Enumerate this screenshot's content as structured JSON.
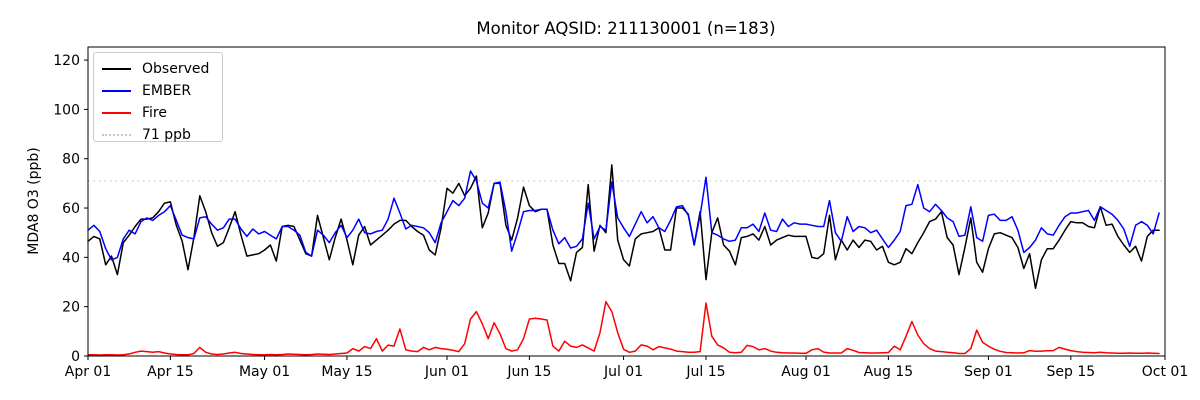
{
  "chart_data": {
    "type": "line",
    "title": "Monitor AQSID: 211130001 (n=183)",
    "xlabel": "",
    "ylabel": "MDA8 O3 (ppb)",
    "n": 183,
    "x_unit": "day index from Apr 01",
    "x_range": [
      "Apr 01",
      "Oct 01"
    ],
    "ylim": [
      0,
      125.3
    ],
    "grid": false,
    "y_ticks": [
      0,
      20,
      40,
      60,
      80,
      100,
      120
    ],
    "x_ticks": [
      {
        "label": "Apr 01",
        "day": 0
      },
      {
        "label": "Apr 15",
        "day": 14
      },
      {
        "label": "May 01",
        "day": 30
      },
      {
        "label": "May 15",
        "day": 44
      },
      {
        "label": "Jun 01",
        "day": 61
      },
      {
        "label": "Jun 15",
        "day": 75
      },
      {
        "label": "Jul 01",
        "day": 91
      },
      {
        "label": "Jul 15",
        "day": 105
      },
      {
        "label": "Aug 01",
        "day": 122
      },
      {
        "label": "Aug 15",
        "day": 136
      },
      {
        "label": "Sep 01",
        "day": 153
      },
      {
        "label": "Sep 15",
        "day": 167
      },
      {
        "label": "Oct 01",
        "day": 183
      }
    ],
    "threshold": {
      "label": "71 ppb",
      "value": 71,
      "color": "#c8c8c8",
      "style": "dotted"
    },
    "legend": {
      "position": "upper left",
      "entries": [
        "Observed",
        "EMBER",
        "Fire",
        "71 ppb"
      ]
    },
    "legend_items": [
      {
        "label": "Observed",
        "color": "#000000",
        "style": "solid"
      },
      {
        "label": "EMBER",
        "color": "#0000ff",
        "style": "solid"
      },
      {
        "label": "Fire",
        "color": "#ff0000",
        "style": "solid"
      },
      {
        "label": "71 ppb",
        "color": "#c8c8c8",
        "style": "dotted"
      }
    ],
    "series": [
      {
        "name": "Observed",
        "color": "#000000",
        "values": [
          46.5,
          48.5,
          47.5,
          37,
          40.5,
          33,
          46,
          49,
          52.5,
          55.5,
          55.5,
          56,
          58.5,
          62,
          62.5,
          53,
          46.5,
          35,
          48,
          65,
          58.5,
          50,
          44.5,
          46,
          52,
          58.5,
          49,
          40.5,
          41,
          41.5,
          43,
          45,
          38.5,
          52.5,
          53,
          52.5,
          47,
          41.5,
          40.5,
          57,
          48,
          39,
          48,
          55.5,
          47,
          37,
          49,
          52.5,
          45,
          47,
          49,
          51,
          53.5,
          55,
          55,
          52.5,
          50.5,
          49,
          43,
          41,
          52,
          68,
          66,
          70,
          65,
          68,
          73,
          52,
          58,
          70,
          70,
          53,
          47,
          56,
          68.5,
          61,
          58.5,
          59.5,
          59.5,
          45,
          37.5,
          37.5,
          30.5,
          42,
          44,
          69.5,
          42.5,
          53,
          50,
          77.5,
          47,
          39,
          36.5,
          47.5,
          49.5,
          50,
          50.5,
          52,
          43,
          43,
          60,
          60,
          57.5,
          45,
          58.5,
          31,
          50,
          56,
          45,
          42.5,
          37,
          48,
          48.5,
          49.5,
          47,
          52.5,
          45,
          47,
          48,
          49,
          48.5,
          48.5,
          48.5,
          40,
          39.5,
          41.5,
          57,
          39,
          47,
          43,
          47,
          44,
          47,
          46.5,
          43,
          44.5,
          38,
          37,
          38,
          43.5,
          41.5,
          46,
          50,
          54.5,
          55.5,
          58.5,
          48,
          45,
          33,
          44,
          56,
          38,
          34,
          43.5,
          49.5,
          50,
          49,
          48,
          44,
          35.5,
          41.5,
          27.5,
          39,
          43.5,
          43.5,
          47,
          51,
          54.5,
          54,
          54,
          52.5,
          52,
          60.5,
          53,
          53.5,
          48.5,
          45,
          42,
          44.5,
          38.5,
          48.5,
          51,
          51
        ]
      },
      {
        "name": "EMBER",
        "color": "#0000ff",
        "values": [
          51,
          53,
          50.5,
          43.5,
          39,
          40,
          47.5,
          51,
          49.5,
          54.5,
          56,
          55,
          57,
          58.5,
          61,
          55,
          49,
          48,
          47.5,
          56,
          56.5,
          53.5,
          51,
          52,
          55.5,
          55.5,
          51.5,
          48.5,
          51.5,
          49.5,
          50.5,
          49,
          47.5,
          52.5,
          52.5,
          51,
          49,
          42,
          40.5,
          51,
          49,
          46,
          50,
          53,
          48,
          51,
          55.5,
          50,
          49.5,
          50.5,
          51,
          55.5,
          64,
          58,
          51.5,
          53,
          52.5,
          52,
          50,
          46,
          54,
          58.5,
          63,
          61,
          64,
          75,
          71,
          62,
          60,
          70,
          70.5,
          58.5,
          42.5,
          50,
          58.5,
          59,
          59,
          59.5,
          59.5,
          51,
          45.5,
          48,
          43.8,
          44.5,
          47.5,
          62,
          47.5,
          52.5,
          51,
          70.5,
          56,
          52,
          48.5,
          53.5,
          58.5,
          54,
          56.5,
          52,
          50.5,
          55,
          60.5,
          61,
          57,
          45,
          57,
          72.5,
          50,
          49,
          47.5,
          46.5,
          47,
          52,
          52,
          53.5,
          50.5,
          58,
          51,
          50.5,
          55.5,
          52.5,
          54,
          53.5,
          53.5,
          53,
          52.5,
          52.5,
          63,
          50,
          46.5,
          56.5,
          50.5,
          52.5,
          52,
          50,
          51,
          47.5,
          44,
          47,
          50.5,
          61,
          61.5,
          69.5,
          60,
          58.5,
          61.5,
          59,
          56,
          54.5,
          48.5,
          49,
          60.5,
          48,
          46.5,
          57,
          57.5,
          55,
          55,
          56.5,
          51,
          42,
          44,
          47,
          52,
          49.5,
          49,
          53,
          56.5,
          58,
          58,
          58.5,
          59,
          55,
          60.5,
          59,
          57.5,
          55,
          51.5,
          44.5,
          53,
          54.5,
          53,
          49.5,
          58
        ]
      },
      {
        "name": "Fire",
        "color": "#ff0000",
        "values": [
          0.5,
          0.5,
          0.4,
          0.5,
          0.5,
          0.4,
          0.5,
          0.8,
          1.5,
          2,
          1.8,
          1.5,
          1.8,
          1.2,
          0.8,
          0.6,
          0.5,
          0.5,
          1,
          3.5,
          1.5,
          0.8,
          0.6,
          0.8,
          1.2,
          1.5,
          1,
          0.8,
          0.6,
          0.5,
          0.5,
          0.6,
          0.5,
          0.6,
          0.8,
          0.7,
          0.6,
          0.5,
          0.6,
          0.8,
          0.7,
          0.6,
          0.8,
          1,
          1.2,
          3,
          2,
          3.8,
          3,
          7,
          2,
          4.4,
          4,
          11,
          2.5,
          2,
          1.8,
          3.5,
          2.5,
          3.5,
          3,
          2.7,
          2.3,
          1.8,
          5,
          15,
          18,
          13,
          7,
          13.5,
          9,
          3,
          2,
          2.5,
          7,
          15,
          15.3,
          15,
          14.6,
          4,
          2,
          6,
          4,
          3.5,
          4.5,
          3.3,
          2,
          9.5,
          22,
          18,
          9.5,
          2.7,
          1.5,
          2,
          4.5,
          4,
          2.5,
          3.8,
          3.3,
          2.8,
          2,
          1.8,
          1.5,
          1.5,
          1.8,
          21.5,
          8,
          4.5,
          3.3,
          1.5,
          1.3,
          1.5,
          4.3,
          3.8,
          2.5,
          3,
          2,
          1.5,
          1.3,
          1.2,
          1.2,
          1.1,
          1.1,
          2.5,
          3,
          1.6,
          1.2,
          1.2,
          1.2,
          3,
          2.3,
          1.4,
          1.3,
          1.2,
          1.2,
          1.3,
          1.4,
          4,
          2.5,
          8,
          14,
          8.5,
          5,
          3,
          2,
          1.8,
          1.5,
          1.3,
          1,
          1,
          3,
          10.5,
          5.5,
          4,
          2.7,
          1.9,
          1.4,
          1.3,
          1.2,
          1.3,
          2.2,
          1.9,
          2,
          2.1,
          2.2,
          3.5,
          2.8,
          2.2,
          1.8,
          1.5,
          1.4,
          1.3,
          1.5,
          1.3,
          1.2,
          1.1,
          1.1,
          1.2,
          1.1,
          1.1,
          1.2,
          1.1,
          1
        ]
      }
    ]
  }
}
